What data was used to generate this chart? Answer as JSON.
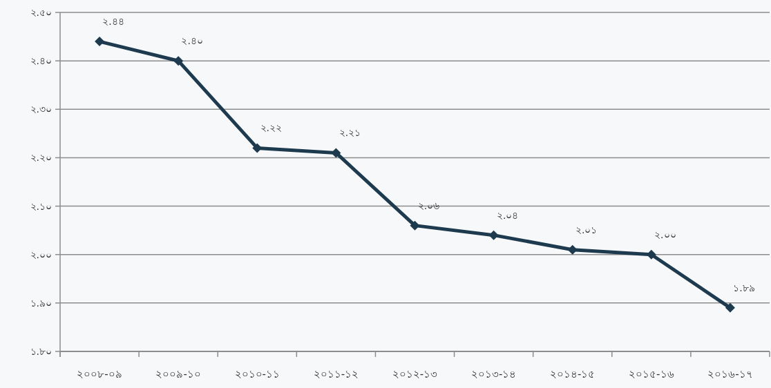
{
  "chart_data": {
    "type": "line",
    "categories": [
      "২০০৮-০৯",
      "২০০৯-১০",
      "২০১০-১১",
      "২০১১-১২",
      "২০১২-১৩",
      "২০১৩-১৪",
      "২০১৪-১৫",
      "২০১৫-১৬",
      "২০১৬-১৭"
    ],
    "series": [
      {
        "color": "#1e3a4f",
        "values": [
          2.44,
          2.4,
          2.22,
          2.21,
          2.06,
          2.04,
          2.01,
          2.0,
          1.89
        ],
        "value_labels": [
          "২.৪৪",
          "২.৪০",
          "২.২২",
          "২.২১",
          "২.০৬",
          "২.০৪",
          "২.০১",
          "২.০০",
          "১.৮৯"
        ]
      }
    ],
    "ylim": [
      1.8,
      2.5
    ],
    "yticks": [
      {
        "value": 1.8,
        "label": "১.৮০"
      },
      {
        "value": 1.9,
        "label": "১.৯০"
      },
      {
        "value": 2.0,
        "label": "২.০০"
      },
      {
        "value": 2.1,
        "label": "২.১০"
      },
      {
        "value": 2.2,
        "label": "২.২০"
      },
      {
        "value": 2.3,
        "label": "২.৩০"
      },
      {
        "value": 2.4,
        "label": "২.৪০"
      },
      {
        "value": 2.5,
        "label": "২.৫০"
      }
    ],
    "grid": "y",
    "marker": "diamond",
    "line_style": "solid"
  }
}
